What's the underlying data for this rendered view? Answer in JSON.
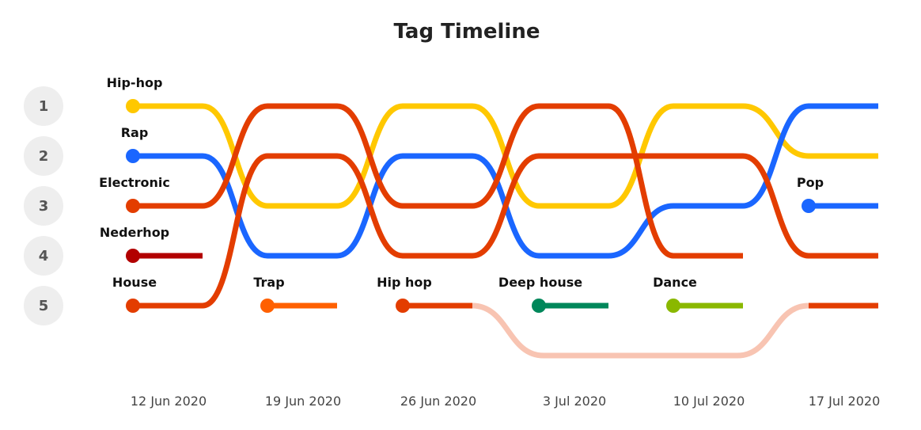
{
  "chart_data": {
    "type": "line",
    "title": "Tag Timeline",
    "x": [
      "12 Jun 2020",
      "19 Jun 2020",
      "26 Jun 2020",
      "3 Jul 2020",
      "10 Jul 2020",
      "17 Jul 2020"
    ],
    "ranks": [
      "1",
      "2",
      "3",
      "4",
      "5"
    ],
    "series": [
      {
        "name": "Hip-hop",
        "color": "#ffc800",
        "ranks": [
          1,
          3,
          1,
          3,
          1,
          2
        ]
      },
      {
        "name": "Rap",
        "color": "#1a66ff",
        "ranks": [
          2,
          4,
          2,
          4,
          3,
          1
        ]
      },
      {
        "name": "Electronic",
        "color": "#e33d00",
        "ranks": [
          3,
          1,
          3,
          1,
          4,
          null
        ]
      },
      {
        "name": "Nederhop",
        "color": "#b20000",
        "ranks": [
          4,
          null,
          null,
          null,
          null,
          null
        ]
      },
      {
        "name": "House",
        "color": "#e33d00",
        "ranks": [
          5,
          2,
          4,
          2,
          2,
          4
        ]
      },
      {
        "name": "Trap",
        "color": "#ff6000",
        "ranks": [
          null,
          5,
          null,
          null,
          null,
          null
        ]
      },
      {
        "name": "Hip hop",
        "color": "#e33d00",
        "ranks": [
          null,
          null,
          5,
          null,
          null,
          5
        ],
        "gap_color": "#f8c4b2",
        "gap_rank": 6
      },
      {
        "name": "Deep house",
        "color": "#00875a",
        "ranks": [
          null,
          null,
          null,
          5,
          null,
          null
        ]
      },
      {
        "name": "Dance",
        "color": "#8ab800",
        "ranks": [
          null,
          null,
          null,
          null,
          5,
          null
        ]
      },
      {
        "name": "Pop",
        "color": "#1a66ff",
        "ranks": [
          null,
          null,
          null,
          null,
          null,
          3
        ]
      }
    ]
  }
}
